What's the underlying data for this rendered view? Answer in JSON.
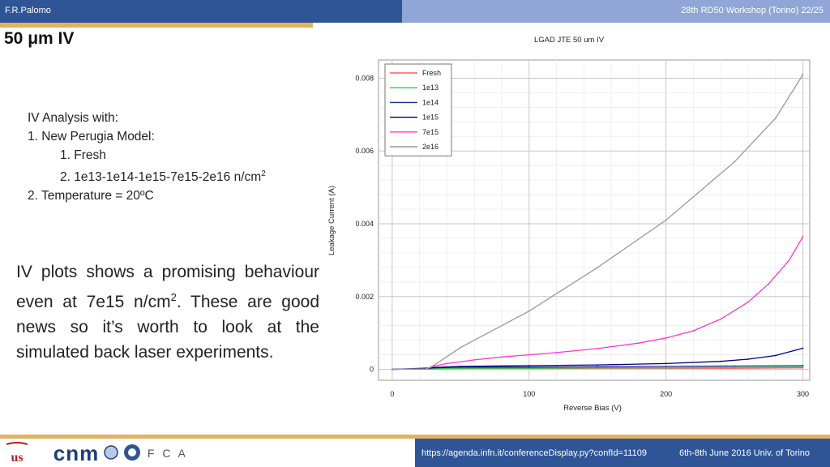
{
  "header": {
    "author": "F.R.Palomo",
    "conference": "28th RD50 Workshop (Torino) 22/25",
    "slide_title": "50 μm IV"
  },
  "analysis": {
    "heading": "IV Analysis with:",
    "item1": "1.  New Perugia Model:",
    "sub1": "1.  Fresh",
    "sub2": "2.  1e13-1e14-1e15-7e15-2e16 n/cm",
    "sub2_sup": "2",
    "item2": "2.  Temperature = 20ºC"
  },
  "paragraph": {
    "text1": "IV plots shows a promising behaviour even at 7e15 n/cm",
    "sup": "2",
    "text2": ". These are good news so it’s worth to look at the simulated back laser experiments."
  },
  "footer": {
    "url": "https://agenda.infn.it/conferenceDisplay.py?confId=11109",
    "date": "6th-8th June  2016  Univ. of Torino",
    "logos": [
      "us-logo",
      "cnm-logo",
      "ifca-logo"
    ]
  },
  "chart_data": {
    "type": "line",
    "title": "LGAD JTE 50 um IV",
    "xlabel": "Reverse Bias (V)",
    "ylabel": "Leakage Current (A)",
    "xlim": [
      -10,
      305
    ],
    "ylim": [
      -0.0003,
      0.0085
    ],
    "xticks": [
      0,
      100,
      200,
      300
    ],
    "yticks": [
      0,
      0.002,
      0.004,
      0.006,
      0.008
    ],
    "ytick_labels": [
      "0",
      "0.002",
      "0.004",
      "0.006",
      "0.008"
    ],
    "grid": true,
    "legend_position": "top-left",
    "series": [
      {
        "name": "Fresh",
        "color": "#ff5c5c",
        "x": [
          0,
          30,
          50,
          100,
          150,
          200,
          250,
          300
        ],
        "y": [
          0,
          1e-05,
          2e-05,
          2e-05,
          3e-05,
          3e-05,
          3e-05,
          4e-05
        ]
      },
      {
        "name": "1e13",
        "color": "#2ecc40",
        "x": [
          0,
          30,
          50,
          100,
          150,
          200,
          250,
          300
        ],
        "y": [
          0,
          2e-05,
          3e-05,
          3e-05,
          4e-05,
          4e-05,
          5e-05,
          6e-05
        ]
      },
      {
        "name": "1e14",
        "color": "#1a2a8c",
        "x": [
          0,
          30,
          50,
          100,
          150,
          200,
          250,
          300
        ],
        "y": [
          0,
          4e-05,
          6e-05,
          6e-05,
          7e-05,
          8e-05,
          9e-05,
          0.0001
        ]
      },
      {
        "name": "1e15",
        "color": "#000080",
        "x": [
          0,
          25,
          30,
          50,
          100,
          150,
          200,
          240,
          260,
          280,
          300
        ],
        "y": [
          0,
          1e-05,
          5e-05,
          8e-05,
          0.0001,
          0.00012,
          0.00016,
          0.00022,
          0.00028,
          0.00038,
          0.00058
        ]
      },
      {
        "name": "7e15",
        "color": "#ff33cc",
        "x": [
          0,
          25,
          30,
          40,
          60,
          80,
          100,
          120,
          150,
          180,
          200,
          220,
          240,
          260,
          275,
          290,
          300
        ],
        "y": [
          0,
          1e-05,
          8e-05,
          0.00016,
          0.00026,
          0.00034,
          0.0004,
          0.00046,
          0.00057,
          0.00072,
          0.00086,
          0.00106,
          0.00138,
          0.00185,
          0.00235,
          0.003,
          0.00365
        ]
      },
      {
        "name": "2e16",
        "color": "#999999",
        "x": [
          0,
          25,
          30,
          50,
          100,
          150,
          200,
          250,
          280,
          300
        ],
        "y": [
          0,
          1e-05,
          0.0001,
          0.0006,
          0.0016,
          0.0028,
          0.0041,
          0.0057,
          0.0069,
          0.0081
        ]
      }
    ]
  }
}
